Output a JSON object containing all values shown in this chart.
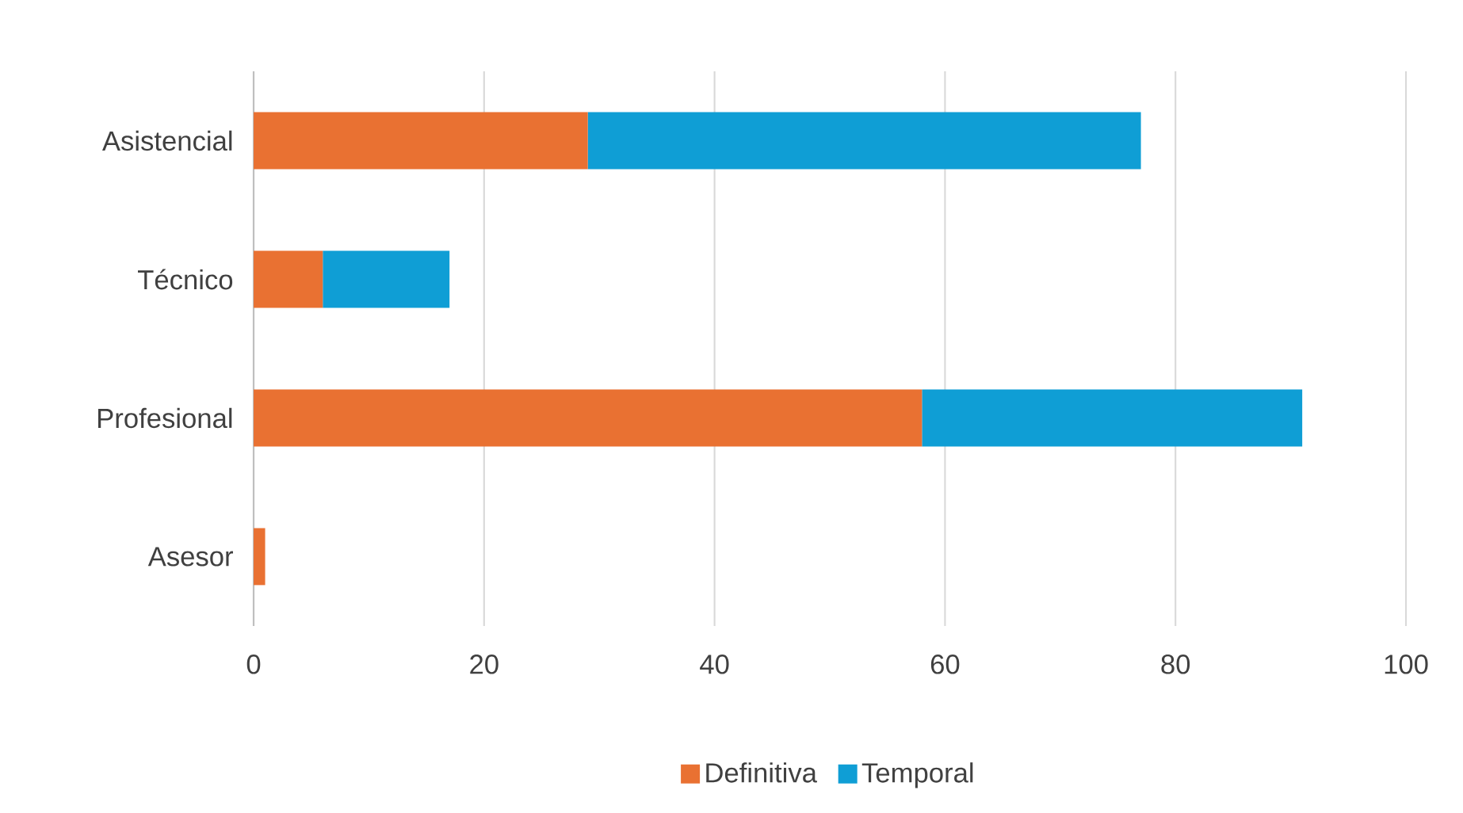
{
  "chart_data": {
    "type": "bar",
    "orientation": "horizontal",
    "stacked": true,
    "categories": [
      "Asistencial",
      "Técnico",
      "Profesional",
      "Asesor"
    ],
    "series": [
      {
        "name": "Definitiva",
        "color": "#e97132",
        "values": [
          29,
          6,
          58,
          1
        ]
      },
      {
        "name": "Temporal",
        "color": "#0f9ed5",
        "values": [
          48,
          11,
          33,
          0
        ]
      }
    ],
    "xlim": [
      0,
      100
    ],
    "xticks": [
      0,
      20,
      40,
      60,
      80,
      100
    ],
    "grid": "x",
    "legend": "bottom"
  }
}
